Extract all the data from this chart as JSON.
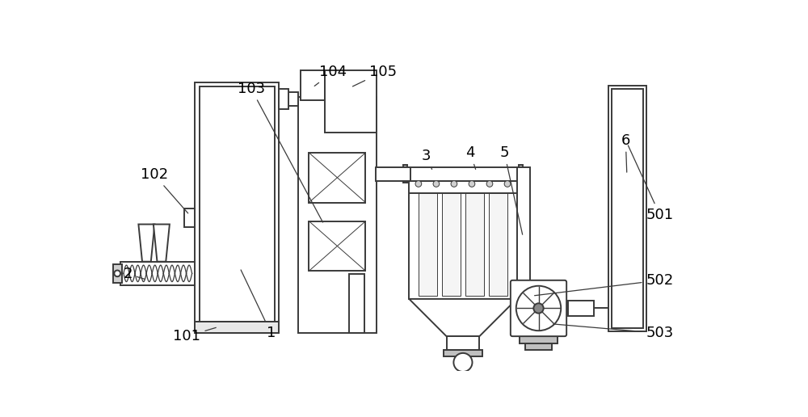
{
  "bg_color": "#ffffff",
  "line_color": "#3a3a3a",
  "lw": 1.4,
  "tlw": 0.7,
  "fs": 13
}
